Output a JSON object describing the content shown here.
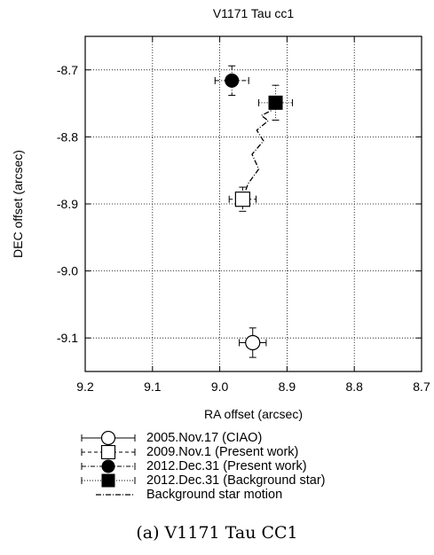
{
  "caption": "(a) V1171 Tau CC1",
  "chart_data": {
    "type": "scatter",
    "title": "V1171 Tau cc1",
    "xlabel": "RA offset (arcsec)",
    "ylabel": "DEC offset (arcsec)",
    "xlim": [
      9.2,
      8.7
    ],
    "ylim": [
      -9.15,
      -8.65
    ],
    "x_reversed": true,
    "grid": true,
    "xticks": [
      9.2,
      9.1,
      9.0,
      8.9,
      8.8,
      8.7
    ],
    "xtick_labels": [
      "9.2",
      "9.1",
      "9.0",
      "8.9",
      "8.8",
      "8.7"
    ],
    "yticks": [
      -8.7,
      -8.8,
      -8.9,
      -9.0,
      -9.1
    ],
    "ytick_labels": [
      "-8.7",
      "-8.8",
      "-8.9",
      "-9.0",
      "-9.1"
    ],
    "legend_position": "below",
    "series": [
      {
        "name": "2005.Nov.17 (CIAO)",
        "marker": "open-circle",
        "errorbar_style": "solid",
        "points": [
          {
            "x": 8.951,
            "y": -9.107,
            "xerr": 0.02,
            "yerr": 0.022
          }
        ]
      },
      {
        "name": "2009.Nov.1 (Present work)",
        "marker": "open-square",
        "errorbar_style": "dashed",
        "points": [
          {
            "x": 8.966,
            "y": -8.893,
            "xerr": 0.02,
            "yerr": 0.018
          }
        ]
      },
      {
        "name": "2012.Dec.31 (Present work)",
        "marker": "filled-circle",
        "errorbar_style": "dash-dot",
        "points": [
          {
            "x": 8.982,
            "y": -8.716,
            "xerr": 0.025,
            "yerr": 0.022
          }
        ]
      },
      {
        "name": "2012.Dec.31 (Background star)",
        "marker": "filled-square",
        "errorbar_style": "dotted",
        "points": [
          {
            "x": 8.917,
            "y": -8.749,
            "xerr": 0.025,
            "yerr": 0.026
          }
        ]
      },
      {
        "name": "Background star motion",
        "marker": "none",
        "line_style": "dash-dot",
        "x": [
          8.966,
          8.958,
          8.942,
          8.952,
          8.935,
          8.945,
          8.928,
          8.938,
          8.922,
          8.917
        ],
        "y": [
          -8.893,
          -8.87,
          -8.848,
          -8.826,
          -8.806,
          -8.79,
          -8.776,
          -8.768,
          -8.76,
          -8.749
        ]
      }
    ]
  }
}
